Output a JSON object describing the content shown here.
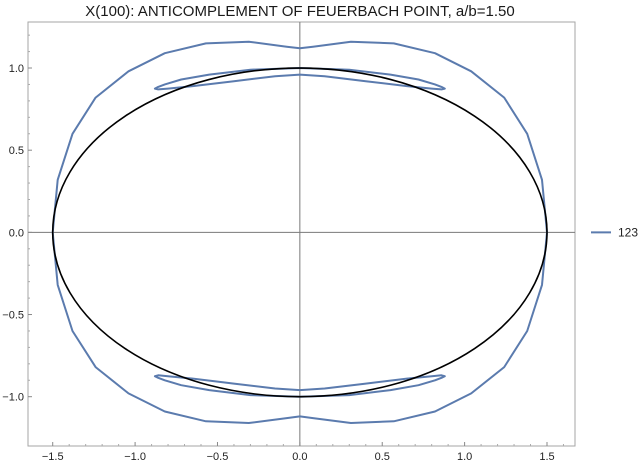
{
  "chart_data": {
    "type": "line",
    "title": "X(100): ANTICOMPLEMENT OF FEUERBACH POINT, a/b=1.50",
    "xlabel": "",
    "ylabel": "",
    "xlim": [
      -1.65,
      1.67
    ],
    "ylim": [
      -1.3,
      1.28
    ],
    "xticks": [
      -1.5,
      -1.0,
      -0.5,
      0.0,
      0.5,
      1.0,
      1.5
    ],
    "xtick_labels": [
      "−1.5",
      "−1.0",
      "−0.5",
      "0.0",
      "0.5",
      "1.0",
      "1.5"
    ],
    "yticks": [
      -1.0,
      -0.5,
      0.0,
      0.5,
      1.0
    ],
    "ytick_labels": [
      "−1.0",
      "−0.5",
      "0.0",
      "0.5",
      "1.0"
    ],
    "grid": false,
    "legend_position": "right",
    "series": [
      {
        "name": "123",
        "color": "#5b7bae",
        "x": [
          1.5,
          1.47,
          1.38,
          1.24,
          1.04,
          0.82,
          0.57,
          0.31,
          0.08,
          0.0,
          -0.08,
          -0.31,
          -0.57,
          -0.82,
          -1.04,
          -1.24,
          -1.38,
          -1.47,
          -1.5,
          -1.47,
          -1.38,
          -1.24,
          -1.04,
          -0.82,
          -0.57,
          -0.31,
          -0.08,
          0.0,
          0.08,
          0.31,
          0.57,
          0.82,
          1.04,
          1.24,
          1.38,
          1.47,
          1.5
        ],
        "y": [
          0.0,
          0.32,
          0.6,
          0.82,
          0.98,
          1.09,
          1.15,
          1.16,
          1.13,
          1.12,
          1.13,
          1.16,
          1.15,
          1.09,
          0.98,
          0.82,
          0.6,
          0.32,
          0.0,
          -0.32,
          -0.6,
          -0.82,
          -0.98,
          -1.09,
          -1.15,
          -1.16,
          -1.13,
          -1.12,
          -1.13,
          -1.16,
          -1.15,
          -1.09,
          -0.98,
          -0.82,
          -0.6,
          -0.32,
          0.0
        ]
      },
      {
        "name": "",
        "color": "#5b7bae",
        "x": [
          0.0,
          0.3,
          0.55,
          0.72,
          0.82,
          0.86,
          0.88,
          0.86,
          0.8,
          0.65,
          0.4,
          0.15,
          0.0,
          -0.15,
          -0.4,
          -0.65,
          -0.8,
          -0.86,
          -0.88,
          -0.86,
          -0.82,
          -0.72,
          -0.55,
          -0.3,
          0.0
        ],
        "y": [
          1.0,
          0.99,
          0.96,
          0.93,
          0.9,
          0.885,
          0.875,
          0.87,
          0.875,
          0.89,
          0.92,
          0.95,
          0.96,
          0.95,
          0.92,
          0.89,
          0.875,
          0.87,
          0.875,
          0.885,
          0.9,
          0.93,
          0.96,
          0.99,
          1.0
        ]
      },
      {
        "name": "",
        "color": "#5b7bae",
        "x": [
          0.0,
          0.3,
          0.55,
          0.72,
          0.82,
          0.86,
          0.88,
          0.86,
          0.8,
          0.65,
          0.4,
          0.15,
          0.0,
          -0.15,
          -0.4,
          -0.65,
          -0.8,
          -0.86,
          -0.88,
          -0.86,
          -0.82,
          -0.72,
          -0.55,
          -0.3,
          0.0
        ],
        "y": [
          -1.0,
          -0.99,
          -0.96,
          -0.93,
          -0.9,
          -0.885,
          -0.875,
          -0.87,
          -0.875,
          -0.89,
          -0.92,
          -0.95,
          -0.96,
          -0.95,
          -0.92,
          -0.89,
          -0.875,
          -0.87,
          -0.875,
          -0.885,
          -0.9,
          -0.93,
          -0.96,
          -0.99,
          -1.0
        ]
      },
      {
        "name": "",
        "color": "#000000",
        "shape": "ellipse",
        "cx": 0.0,
        "cy": 0.0,
        "rx": 1.5,
        "ry": 1.0
      }
    ],
    "legend": [
      {
        "label": "123",
        "color": "#5b7bae"
      }
    ]
  }
}
